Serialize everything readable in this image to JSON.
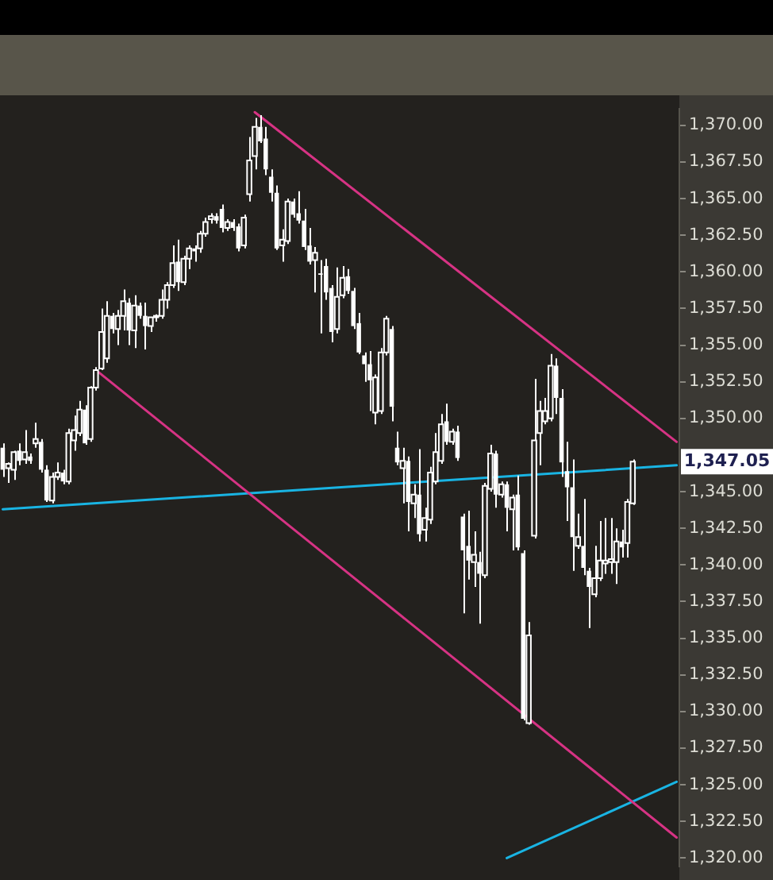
{
  "chart_data": {
    "type": "candlestick",
    "color": "#ffffff",
    "grid": false,
    "tick_labels": "y",
    "categories": [
      null,
      null,
      null,
      null,
      null,
      null,
      null,
      null,
      null,
      null,
      null,
      null,
      null,
      null,
      null,
      null,
      null,
      null,
      null,
      null,
      null,
      null,
      null,
      null,
      null,
      null,
      null,
      null,
      null,
      null,
      null,
      null,
      null,
      null,
      null,
      null,
      null,
      null,
      null,
      null,
      null,
      null,
      null,
      null,
      null,
      null,
      null,
      null,
      null,
      null,
      null,
      null,
      null,
      null,
      null,
      null,
      null,
      null,
      null,
      null,
      null,
      null,
      null,
      null,
      null,
      null,
      null,
      null,
      null,
      null,
      null,
      null,
      null,
      null,
      null,
      null,
      null,
      null,
      null,
      null,
      null,
      null,
      null,
      null,
      null,
      null,
      null,
      null,
      null,
      null,
      null,
      null,
      null,
      null,
      null,
      null,
      null,
      null,
      null,
      null,
      null,
      null,
      null,
      null,
      null,
      null,
      null,
      null,
      null,
      null,
      null,
      null,
      null,
      null,
      null,
      null,
      null,
      null,
      null,
      null,
      null,
      null,
      null,
      null
    ],
    "ohlc": [
      [
        1348.0,
        1348.3,
        1346.0,
        1346.5
      ],
      [
        1346.6,
        1347.0,
        1345.6,
        1346.9
      ],
      [
        1346.5,
        1347.8,
        1345.8,
        1347.7
      ],
      [
        1347.8,
        1348.3,
        1346.8,
        1347.1
      ],
      [
        1347.2,
        1349.2,
        1346.9,
        1347.7
      ],
      [
        1347.4,
        1347.6,
        1346.9,
        1347.1
      ],
      [
        1348.3,
        1349.7,
        1348.0,
        1348.6
      ],
      [
        1348.4,
        1348.6,
        1346.3,
        1346.5
      ],
      [
        1346.5,
        1346.8,
        1344.3,
        1344.4
      ],
      [
        1344.4,
        1346.3,
        1344.2,
        1346.0
      ],
      [
        1346.0,
        1347.0,
        1345.8,
        1346.3
      ],
      [
        1346.3,
        1346.5,
        1345.5,
        1345.7
      ],
      [
        1345.7,
        1349.3,
        1345.5,
        1349.0
      ],
      [
        1348.5,
        1350.2,
        1347.8,
        1349.2
      ],
      [
        1349.0,
        1351.2,
        1348.8,
        1350.6
      ],
      [
        1350.6,
        1350.9,
        1348.2,
        1348.3
      ],
      [
        1348.6,
        1352.2,
        1348.4,
        1352.1
      ],
      [
        1352.1,
        1353.5,
        1351.9,
        1353.3
      ],
      [
        1353.4,
        1357.5,
        1353.3,
        1355.9
      ],
      [
        1354.1,
        1358.0,
        1353.8,
        1357.0
      ],
      [
        1357.0,
        1357.2,
        1355.8,
        1356.1
      ],
      [
        1356.1,
        1357.4,
        1355.0,
        1357.0
      ],
      [
        1357.0,
        1358.8,
        1356.0,
        1358.0
      ],
      [
        1357.9,
        1358.2,
        1355.0,
        1356.0
      ],
      [
        1356.0,
        1358.4,
        1354.8,
        1357.7
      ],
      [
        1357.7,
        1357.9,
        1356.8,
        1357.0
      ],
      [
        1357.0,
        1357.9,
        1354.7,
        1356.3
      ],
      [
        1356.3,
        1356.9,
        1355.9,
        1356.9
      ],
      [
        1356.9,
        1357.1,
        1356.6,
        1357.0
      ],
      [
        1357.0,
        1358.8,
        1356.8,
        1358.1
      ],
      [
        1358.1,
        1359.3,
        1357.5,
        1359.1
      ],
      [
        1359.1,
        1361.8,
        1358.9,
        1360.6
      ],
      [
        1360.7,
        1362.2,
        1358.7,
        1359.3
      ],
      [
        1359.3,
        1361.1,
        1359.1,
        1360.9
      ],
      [
        1360.9,
        1361.8,
        1360.2,
        1361.6
      ],
      [
        1361.6,
        1361.8,
        1360.7,
        1361.4
      ],
      [
        1361.6,
        1362.8,
        1361.3,
        1362.6
      ],
      [
        1362.6,
        1363.7,
        1362.4,
        1363.4
      ],
      [
        1363.6,
        1364.0,
        1363.3,
        1363.8
      ],
      [
        1363.8,
        1364.0,
        1363.3,
        1363.5
      ],
      [
        1364.3,
        1364.6,
        1362.7,
        1363.0
      ],
      [
        1363.0,
        1363.6,
        1362.8,
        1363.4
      ],
      [
        1363.4,
        1363.6,
        1362.8,
        1363.0
      ],
      [
        1363.1,
        1363.3,
        1361.4,
        1361.6
      ],
      [
        1361.8,
        1363.9,
        1361.6,
        1363.7
      ],
      [
        1365.3,
        1369.2,
        1364.8,
        1367.6
      ],
      [
        1367.9,
        1370.5,
        1367.0,
        1369.9
      ],
      [
        1369.9,
        1370.7,
        1368.8,
        1368.9
      ],
      [
        1369.1,
        1369.9,
        1366.6,
        1367.0
      ],
      [
        1366.5,
        1367.0,
        1364.8,
        1365.4
      ],
      [
        1365.4,
        1365.9,
        1361.5,
        1361.6
      ],
      [
        1361.8,
        1362.9,
        1360.7,
        1362.2
      ],
      [
        1362.1,
        1365.0,
        1361.9,
        1364.8
      ],
      [
        1364.8,
        1365.0,
        1363.7,
        1363.9
      ],
      [
        1364.0,
        1365.5,
        1363.3,
        1363.5
      ],
      [
        1363.5,
        1364.3,
        1361.5,
        1361.7
      ],
      [
        1361.8,
        1363.0,
        1360.5,
        1360.7
      ],
      [
        1360.8,
        1361.7,
        1358.6,
        1361.3
      ],
      [
        1359.9,
        1360.8,
        1355.8,
        1359.8
      ],
      [
        1360.4,
        1360.9,
        1358.1,
        1358.6
      ],
      [
        1358.9,
        1359.1,
        1355.2,
        1355.9
      ],
      [
        1356.1,
        1360.3,
        1355.8,
        1358.3
      ],
      [
        1358.4,
        1360.4,
        1358.2,
        1359.6
      ],
      [
        1359.7,
        1360.2,
        1358.5,
        1358.7
      ],
      [
        1358.7,
        1358.9,
        1356.1,
        1356.3
      ],
      [
        1356.5,
        1357.2,
        1354.4,
        1354.5
      ],
      [
        1354.3,
        1354.5,
        1352.5,
        1353.7
      ],
      [
        1353.7,
        1354.6,
        1350.5,
        1352.6
      ],
      [
        1350.4,
        1353.0,
        1349.6,
        1352.8
      ],
      [
        1350.5,
        1354.8,
        1350.3,
        1354.5
      ],
      [
        1354.5,
        1357.0,
        1354.3,
        1356.8
      ],
      [
        1356.1,
        1356.3,
        1349.8,
        1350.8
      ],
      [
        1348.0,
        1349.1,
        1346.8,
        1347.0
      ],
      [
        1346.6,
        1348.0,
        1344.2,
        1347.1
      ],
      [
        1347.1,
        1347.4,
        1342.3,
        1344.3
      ],
      [
        1344.2,
        1345.5,
        1343.2,
        1344.8
      ],
      [
        1344.8,
        1347.9,
        1341.6,
        1342.1
      ],
      [
        1342.4,
        1343.9,
        1341.6,
        1343.2
      ],
      [
        1343.1,
        1346.7,
        1342.8,
        1346.3
      ],
      [
        1345.7,
        1349.0,
        1345.5,
        1347.7
      ],
      [
        1347.1,
        1350.3,
        1346.9,
        1349.6
      ],
      [
        1349.8,
        1351.0,
        1348.2,
        1348.4
      ],
      [
        1348.4,
        1349.3,
        1348.2,
        1349.1
      ],
      [
        1349.1,
        1349.5,
        1347.1,
        1347.3
      ],
      [
        1343.3,
        1343.5,
        1336.7,
        1341.0
      ],
      [
        1341.3,
        1343.7,
        1339.0,
        1340.3
      ],
      [
        1340.2,
        1342.3,
        1338.5,
        1340.7
      ],
      [
        1340.2,
        1340.9,
        1336.0,
        1339.4
      ],
      [
        1339.3,
        1345.6,
        1339.1,
        1345.4
      ],
      [
        1345.2,
        1348.2,
        1345.0,
        1347.6
      ],
      [
        1347.6,
        1347.8,
        1343.9,
        1344.8
      ],
      [
        1344.8,
        1345.7,
        1344.6,
        1345.5
      ],
      [
        1345.5,
        1345.7,
        1342.3,
        1343.9
      ],
      [
        1343.8,
        1344.8,
        1341.0,
        1344.6
      ],
      [
        1344.8,
        1346.1,
        1341.0,
        1341.2
      ],
      [
        1340.8,
        1341.0,
        1329.4,
        1329.5
      ],
      [
        1329.2,
        1336.1,
        1329.1,
        1335.2
      ],
      [
        1342.0,
        1352.7,
        1341.8,
        1348.5
      ],
      [
        1349.0,
        1351.2,
        1346.8,
        1350.5
      ],
      [
        1349.8,
        1351.4,
        1349.6,
        1350.5
      ],
      [
        1350.0,
        1354.4,
        1349.8,
        1353.6
      ],
      [
        1353.6,
        1354.1,
        1350.3,
        1351.4
      ],
      [
        1351.4,
        1352.0,
        1346.0,
        1347.0
      ],
      [
        1346.4,
        1348.4,
        1343.0,
        1345.3
      ],
      [
        1345.3,
        1347.2,
        1339.6,
        1341.9
      ],
      [
        1341.3,
        1343.5,
        1341.1,
        1341.9
      ],
      [
        1341.3,
        1344.5,
        1339.3,
        1339.8
      ],
      [
        1339.6,
        1339.8,
        1335.7,
        1338.5
      ],
      [
        1338.0,
        1341.3,
        1337.8,
        1339.1
      ],
      [
        1339.1,
        1343.0,
        1338.9,
        1340.3
      ],
      [
        1340.1,
        1343.2,
        1339.4,
        1340.3
      ],
      [
        1340.2,
        1343.2,
        1339.4,
        1340.4
      ],
      [
        1340.2,
        1342.5,
        1338.7,
        1341.6
      ],
      [
        1341.6,
        1342.4,
        1340.5,
        1341.2
      ],
      [
        1341.5,
        1344.5,
        1340.5,
        1344.3
      ],
      [
        1344.2,
        1347.2,
        1344.1,
        1347.05
      ],
      null,
      null,
      null,
      null,
      null,
      null,
      null,
      null
    ],
    "series": [
      {
        "type": "line",
        "color": "#d63384",
        "values": [
          null,
          null,
          null,
          null,
          null,
          null,
          null,
          null,
          null,
          null,
          null,
          null,
          null,
          null,
          null,
          null,
          null,
          null,
          null,
          null,
          null,
          null,
          null,
          null,
          null,
          null,
          null,
          null,
          null,
          null,
          null,
          null,
          null,
          null,
          null,
          null,
          null,
          null,
          null,
          null,
          null,
          null,
          null,
          null,
          null,
          null,
          1370.9,
          null,
          null,
          null,
          null,
          null,
          null,
          null,
          null,
          null,
          null,
          null,
          null,
          null,
          null,
          null,
          null,
          null,
          null,
          null,
          null,
          null,
          null,
          null,
          null,
          null,
          null,
          null,
          null,
          null,
          null,
          null,
          null,
          null,
          null,
          null,
          null,
          null,
          null,
          null,
          null,
          null,
          null,
          null,
          null,
          null,
          null,
          null,
          null,
          null,
          null,
          null,
          null,
          null,
          null,
          null,
          null,
          null,
          null,
          null,
          null,
          null,
          null,
          null,
          null,
          null,
          null,
          null,
          null,
          null,
          null,
          null,
          null,
          null,
          null,
          null,
          null,
          1348.4
        ]
      },
      {
        "type": "line",
        "color": "#d63384",
        "values": [
          null,
          null,
          null,
          null,
          null,
          null,
          null,
          null,
          null,
          null,
          null,
          null,
          null,
          null,
          null,
          null,
          null,
          1353.3,
          null,
          null,
          null,
          null,
          null,
          null,
          null,
          null,
          null,
          null,
          null,
          null,
          null,
          null,
          null,
          null,
          null,
          null,
          null,
          null,
          null,
          null,
          null,
          null,
          null,
          null,
          null,
          null,
          null,
          null,
          null,
          null,
          null,
          null,
          null,
          null,
          null,
          null,
          null,
          null,
          null,
          null,
          null,
          null,
          null,
          null,
          null,
          null,
          null,
          null,
          null,
          null,
          null,
          null,
          null,
          null,
          null,
          null,
          null,
          null,
          null,
          null,
          null,
          null,
          null,
          null,
          null,
          null,
          null,
          null,
          null,
          null,
          null,
          null,
          null,
          null,
          null,
          null,
          null,
          null,
          null,
          null,
          null,
          null,
          null,
          null,
          null,
          null,
          null,
          null,
          null,
          null,
          null,
          null,
          null,
          null,
          null,
          null,
          null,
          null,
          null,
          null,
          null,
          null,
          null,
          1321.4
        ]
      },
      {
        "type": "line",
        "color": "#19b4e3",
        "values": [
          1343.8,
          null,
          null,
          null,
          null,
          null,
          null,
          null,
          null,
          null,
          null,
          null,
          null,
          null,
          null,
          null,
          null,
          null,
          null,
          null,
          null,
          null,
          null,
          null,
          null,
          null,
          null,
          null,
          null,
          null,
          null,
          null,
          null,
          null,
          null,
          null,
          null,
          null,
          null,
          null,
          null,
          null,
          null,
          null,
          null,
          null,
          null,
          null,
          null,
          null,
          null,
          null,
          null,
          null,
          null,
          null,
          null,
          null,
          null,
          null,
          null,
          null,
          null,
          null,
          null,
          null,
          null,
          null,
          null,
          null,
          null,
          null,
          null,
          null,
          null,
          null,
          null,
          null,
          null,
          null,
          null,
          null,
          null,
          null,
          null,
          null,
          null,
          null,
          null,
          null,
          null,
          null,
          null,
          null,
          null,
          null,
          null,
          null,
          null,
          null,
          null,
          null,
          null,
          null,
          null,
          null,
          null,
          null,
          null,
          null,
          null,
          null,
          null,
          null,
          null,
          null,
          null,
          null,
          null,
          null,
          null,
          null,
          null,
          1346.8
        ]
      },
      {
        "type": "line",
        "color": "#19b4e3",
        "values": [
          null,
          null,
          null,
          null,
          null,
          null,
          null,
          null,
          null,
          null,
          null,
          null,
          null,
          null,
          null,
          null,
          null,
          null,
          null,
          null,
          null,
          null,
          null,
          null,
          null,
          null,
          null,
          null,
          null,
          null,
          null,
          null,
          null,
          null,
          null,
          null,
          null,
          null,
          null,
          null,
          null,
          null,
          null,
          null,
          null,
          null,
          null,
          null,
          null,
          null,
          null,
          null,
          null,
          null,
          null,
          null,
          null,
          null,
          null,
          null,
          null,
          null,
          null,
          null,
          null,
          null,
          null,
          null,
          null,
          null,
          null,
          null,
          null,
          null,
          null,
          null,
          null,
          null,
          null,
          null,
          null,
          null,
          null,
          null,
          null,
          null,
          null,
          null,
          null,
          null,
          null,
          null,
          1320.0,
          null,
          null,
          null,
          null,
          null,
          null,
          null,
          null,
          null,
          null,
          null,
          null,
          null,
          null,
          null,
          null,
          null,
          null,
          null,
          null,
          null,
          null,
          null,
          null,
          null,
          null,
          null,
          null,
          null,
          null,
          1325.2
        ]
      }
    ],
    "ylim": [
      1319.4,
      1371.15
    ],
    "yticks": [
      {
        "value": 1320,
        "label": "1,320.00"
      },
      {
        "value": 1322.5,
        "label": "1,322.50"
      },
      {
        "value": 1325,
        "label": "1,325.00"
      },
      {
        "value": 1327.5,
        "label": "1,327.50"
      },
      {
        "value": 1330,
        "label": "1,330.00"
      },
      {
        "value": 1332.5,
        "label": "1,332.50"
      },
      {
        "value": 1335,
        "label": "1,335.00"
      },
      {
        "value": 1337.5,
        "label": "1,337.50"
      },
      {
        "value": 1340,
        "label": "1,340.00"
      },
      {
        "value": 1342.5,
        "label": "1,342.50"
      },
      {
        "value": 1345,
        "label": "1,345.00"
      },
      {
        "value": 1350,
        "label": "1,350.00"
      },
      {
        "value": 1352.5,
        "label": "1,352.50"
      },
      {
        "value": 1355,
        "label": "1,355.00"
      },
      {
        "value": 1357.5,
        "label": "1,357.50"
      },
      {
        "value": 1360,
        "label": "1,360.00"
      },
      {
        "value": 1362.5,
        "label": "1,362.50"
      },
      {
        "value": 1365,
        "label": "1,365.00"
      },
      {
        "value": 1367.5,
        "label": "1,367.50"
      },
      {
        "value": 1370,
        "label": "1,370.00"
      }
    ],
    "annotations": [
      "1,347.05"
    ],
    "colors": [
      "#ffffff",
      "#23211e",
      "#23211e",
      "#ffffff",
      "#23211e",
      "#ffffff",
      "#23211e",
      "#ffffff",
      "#ffffff",
      "#23211e",
      "#23211e",
      "#ffffff",
      "#23211e",
      "#23211e",
      "#23211e",
      "#ffffff",
      "#23211e",
      "#23211e",
      "#23211e",
      "#23211e",
      "#ffffff",
      "#23211e",
      "#23211e",
      "#ffffff",
      "#23211e",
      "#ffffff",
      "#ffffff",
      "#23211e",
      "#23211e",
      "#23211e",
      "#23211e",
      "#23211e",
      "#ffffff",
      "#23211e",
      "#23211e",
      "#ffffff",
      "#23211e",
      "#23211e",
      "#23211e",
      "#ffffff",
      "#ffffff",
      "#23211e",
      "#ffffff",
      "#ffffff",
      "#23211e",
      "#23211e",
      "#23211e",
      "#ffffff",
      "#ffffff",
      "#ffffff",
      "#ffffff",
      "#23211e",
      "#23211e",
      "#ffffff",
      "#ffffff",
      "#ffffff",
      "#ffffff",
      "#23211e",
      "#ffffff",
      "#ffffff",
      "#ffffff",
      "#23211e",
      "#23211e",
      "#ffffff",
      "#ffffff",
      "#ffffff",
      "#ffffff",
      "#ffffff",
      "#23211e",
      "#23211e",
      "#23211e",
      "#ffffff",
      "#ffffff",
      "#23211e",
      "#ffffff",
      "#23211e",
      "#ffffff",
      "#23211e",
      "#23211e",
      "#23211e",
      "#23211e",
      "#ffffff",
      "#23211e",
      "#ffffff",
      "#ffffff",
      "#ffffff",
      "#23211e",
      "#ffffff",
      "#23211e",
      "#23211e",
      "#ffffff",
      "#23211e",
      "#ffffff",
      "#23211e",
      "#ffffff",
      "#ffffff",
      "#23211e",
      "#23211e",
      "#23211e",
      "#23211e",
      "#23211e",
      "#ffffff",
      "#ffffff",
      "#ffffff",
      "#ffffff",
      "#23211e",
      "#ffffff",
      "#ffffff",
      "#23211e",
      "#23211e",
      "#23211e",
      "#23211e",
      "#23211e",
      "#ffffff",
      "#23211e",
      "#23211e",
      null,
      null,
      null,
      null,
      null,
      null,
      null,
      null
    ]
  }
}
